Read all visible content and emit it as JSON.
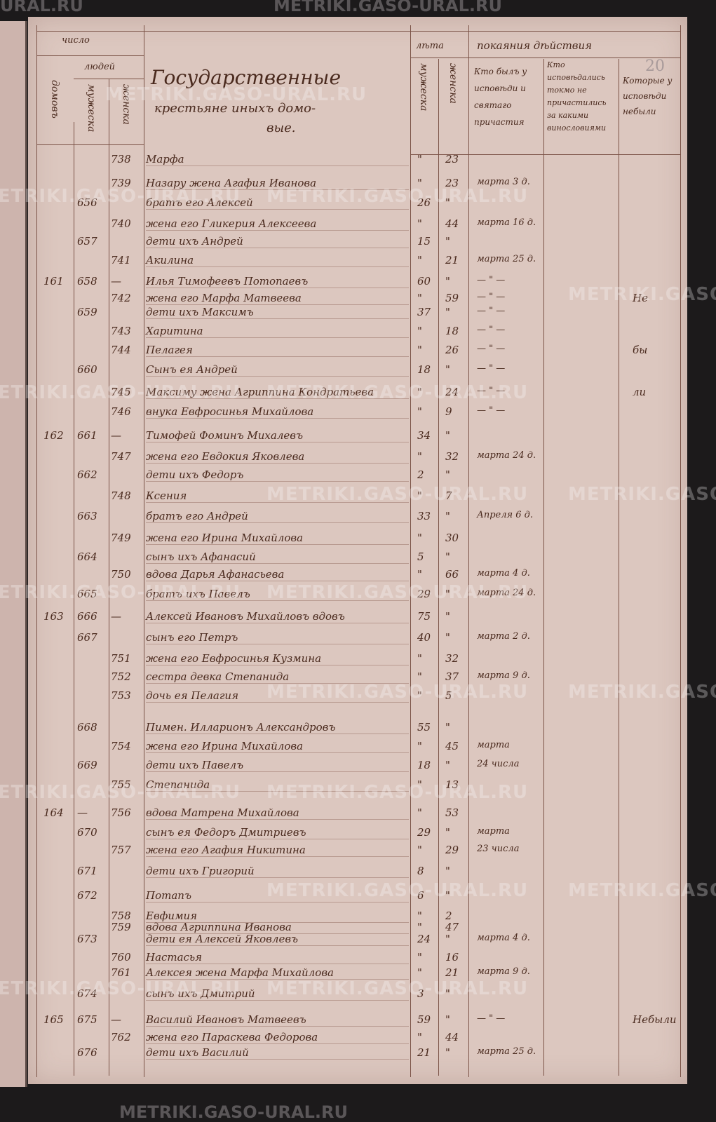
{
  "watermark": "METRIKI.GASO-URAL.RU",
  "page_number": "20",
  "header": {
    "chislo": "число",
    "domov": "домовъ",
    "lyudey": "людей",
    "muzheska": "мужеска",
    "zhenska": "женска",
    "title_line1": "Государственные",
    "title_line2": "крестьяне иныхъ домо-",
    "title_line3": "вые.",
    "leta": "лѣта",
    "leta_m": "мужеска",
    "leta_zh": "женска",
    "pokayaniya": "покаяния дѣйствия",
    "col_confessed": "Кто былъ у исповѣди и святаго причастия",
    "col_not_communed": "Кто исповѣдались токмо не причастились за какими винословиями",
    "col_absent": "Которые у исповѣди небыли"
  },
  "rows": [
    {
      "h": "",
      "m": "",
      "f": "738",
      "name": "Марфа",
      "am": "\"",
      "af": "23",
      "conf": "",
      "note": ""
    },
    {
      "h": "",
      "m": "",
      "f": "739",
      "name": "Назару жена Агафия Иванова",
      "am": "\"",
      "af": "23",
      "conf": "марта 3 д.",
      "note": ""
    },
    {
      "h": "",
      "m": "656",
      "f": "",
      "name": "братъ его Алексей",
      "am": "26",
      "af": "\"",
      "conf": "",
      "note": ""
    },
    {
      "h": "",
      "m": "",
      "f": "740",
      "name": "жена его Гликерия Алексеева",
      "am": "\"",
      "af": "44",
      "conf": "марта 16 д.",
      "note": ""
    },
    {
      "h": "",
      "m": "657",
      "f": "",
      "name": "дети ихъ Андрей",
      "am": "15",
      "af": "\"",
      "conf": "",
      "note": ""
    },
    {
      "h": "",
      "m": "",
      "f": "741",
      "name": "Акилина",
      "am": "\"",
      "af": "21",
      "conf": "марта 25 д.",
      "note": ""
    },
    {
      "h": "161",
      "m": "658",
      "f": "—",
      "name": "Илья Тимофеевъ Потопаевъ",
      "am": "60",
      "af": "\"",
      "conf": "— \" —",
      "note": ""
    },
    {
      "h": "",
      "m": "",
      "f": "742",
      "name": "жена его Марфа Матвеева",
      "am": "\"",
      "af": "59",
      "conf": "— \" —",
      "note": "Не"
    },
    {
      "h": "",
      "m": "659",
      "f": "",
      "name": "дети ихъ Максимъ",
      "am": "37",
      "af": "\"",
      "conf": "— \" —",
      "note": ""
    },
    {
      "h": "",
      "m": "",
      "f": "743",
      "name": "Харитина",
      "am": "\"",
      "af": "18",
      "conf": "— \" —",
      "note": ""
    },
    {
      "h": "",
      "m": "",
      "f": "744",
      "name": "Пелагея",
      "am": "\"",
      "af": "26",
      "conf": "— \" —",
      "note": "бы"
    },
    {
      "h": "",
      "m": "660",
      "f": "",
      "name": "Сынъ ея Андрей",
      "am": "18",
      "af": "\"",
      "conf": "— \" —",
      "note": ""
    },
    {
      "h": "",
      "m": "",
      "f": "745",
      "name": "Максиму жена Агриппина Кондратьева",
      "am": "\"",
      "af": "24",
      "conf": "— \" —",
      "note": "ли"
    },
    {
      "h": "",
      "m": "",
      "f": "746",
      "name": "внука Евфросинья Михайлова",
      "am": "\"",
      "af": "9",
      "conf": "— \" —",
      "note": ""
    },
    {
      "h": "162",
      "m": "661",
      "f": "—",
      "name": "Тимофей Фоминъ Михалевъ",
      "am": "34",
      "af": "\"",
      "conf": "",
      "note": ""
    },
    {
      "h": "",
      "m": "",
      "f": "747",
      "name": "жена его Евдокия Яковлева",
      "am": "\"",
      "af": "32",
      "conf": "марта 24 д.",
      "note": ""
    },
    {
      "h": "",
      "m": "662",
      "f": "",
      "name": "дети ихъ Федоръ",
      "am": "2",
      "af": "\"",
      "conf": "",
      "note": ""
    },
    {
      "h": "",
      "m": "",
      "f": "748",
      "name": "Ксения",
      "am": "\"",
      "af": "7",
      "conf": "",
      "note": ""
    },
    {
      "h": "",
      "m": "663",
      "f": "",
      "name": "братъ его Андрей",
      "am": "33",
      "af": "\"",
      "conf": "Апреля 6 д.",
      "note": ""
    },
    {
      "h": "",
      "m": "",
      "f": "749",
      "name": "жена его Ирина Михайлова",
      "am": "\"",
      "af": "30",
      "conf": "",
      "note": ""
    },
    {
      "h": "",
      "m": "664",
      "f": "",
      "name": "сынъ ихъ Афанасий",
      "am": "5",
      "af": "\"",
      "conf": "",
      "note": ""
    },
    {
      "h": "",
      "m": "",
      "f": "750",
      "name": "вдова Дарья Афанасьева",
      "am": "\"",
      "af": "66",
      "conf": "марта 4 д.",
      "note": ""
    },
    {
      "h": "",
      "m": "665",
      "f": "",
      "name": "братъ ихъ Павелъ",
      "am": "29",
      "af": "\"",
      "conf": "марта 24 д.",
      "note": ""
    },
    {
      "h": "163",
      "m": "666",
      "f": "—",
      "name": "Алексей Ивановъ Михайловъ вдовъ",
      "am": "75",
      "af": "\"",
      "conf": "",
      "note": ""
    },
    {
      "h": "",
      "m": "667",
      "f": "",
      "name": "сынъ его Петръ",
      "am": "40",
      "af": "\"",
      "conf": "марта 2 д.",
      "note": ""
    },
    {
      "h": "",
      "m": "",
      "f": "751",
      "name": "жена его Евфросинья Кузмина",
      "am": "\"",
      "af": "32",
      "conf": "",
      "note": ""
    },
    {
      "h": "",
      "m": "",
      "f": "752",
      "name": "сестра девка Степанида",
      "am": "\"",
      "af": "37",
      "conf": "марта 9 д.",
      "note": ""
    },
    {
      "h": "",
      "m": "",
      "f": "753",
      "name": "дочь ея Пелагия",
      "am": "\"",
      "af": "5",
      "conf": "",
      "note": ""
    },
    {
      "h": "",
      "m": "668",
      "f": "",
      "name": "Пимен. Илларионъ Александровъ",
      "am": "55",
      "af": "\"",
      "conf": "",
      "note": ""
    },
    {
      "h": "",
      "m": "",
      "f": "754",
      "name": "жена его Ирина Михайлова",
      "am": "\"",
      "af": "45",
      "conf": "марта",
      "note": ""
    },
    {
      "h": "",
      "m": "669",
      "f": "",
      "name": "дети ихъ Павелъ",
      "am": "18",
      "af": "\"",
      "conf": "24 числа",
      "note": ""
    },
    {
      "h": "",
      "m": "",
      "f": "755",
      "name": "Степанида",
      "am": "\"",
      "af": "13",
      "conf": "",
      "note": ""
    },
    {
      "h": "164",
      "m": "—",
      "f": "756",
      "name": "вдова Матрена Михайлова",
      "am": "\"",
      "af": "53",
      "conf": "",
      "note": ""
    },
    {
      "h": "",
      "m": "670",
      "f": "",
      "name": "сынъ ея Федоръ Дмитриевъ",
      "am": "29",
      "af": "\"",
      "conf": "марта",
      "note": ""
    },
    {
      "h": "",
      "m": "",
      "f": "757",
      "name": "жена его Агафия Никитина",
      "am": "\"",
      "af": "29",
      "conf": "23 числа",
      "note": ""
    },
    {
      "h": "",
      "m": "671",
      "f": "",
      "name": "дети ихъ Григорий",
      "am": "8",
      "af": "\"",
      "conf": "",
      "note": ""
    },
    {
      "h": "",
      "m": "672",
      "f": "",
      "name": "Потапъ",
      "am": "6",
      "af": "\"",
      "conf": "",
      "note": ""
    },
    {
      "h": "",
      "m": "",
      "f": "758",
      "name": "Евфимия",
      "am": "\"",
      "af": "2",
      "conf": "",
      "note": ""
    },
    {
      "h": "",
      "m": "",
      "f": "759",
      "name": "вдова Агриппина Иванова",
      "am": "\"",
      "af": "47",
      "conf": "",
      "note": ""
    },
    {
      "h": "",
      "m": "673",
      "f": "",
      "name": "дети ея Алексей Яковлевъ",
      "am": "24",
      "af": "\"",
      "conf": "марта 4 д.",
      "note": ""
    },
    {
      "h": "",
      "m": "",
      "f": "760",
      "name": "Настасья",
      "am": "\"",
      "af": "16",
      "conf": "",
      "note": ""
    },
    {
      "h": "",
      "m": "",
      "f": "761",
      "name": "Алексея жена Марфа Михайлова",
      "am": "\"",
      "af": "21",
      "conf": "марта 9 д.",
      "note": ""
    },
    {
      "h": "",
      "m": "674",
      "f": "",
      "name": "сынъ ихъ Дмитрий",
      "am": "3",
      "af": "\"",
      "conf": "",
      "note": ""
    },
    {
      "h": "165",
      "m": "675",
      "f": "—",
      "name": "Василий Ивановъ Матвеевъ",
      "am": "59",
      "af": "\"",
      "conf": "— \" —",
      "note": "Небыли"
    },
    {
      "h": "",
      "m": "",
      "f": "762",
      "name": "жена его Параскева Федорова",
      "am": "\"",
      "af": "44",
      "conf": "",
      "note": ""
    },
    {
      "h": "",
      "m": "676",
      "f": "",
      "name": "дети ихъ Василий",
      "am": "21",
      "af": "\"",
      "conf": "марта 25 д.",
      "note": ""
    }
  ]
}
